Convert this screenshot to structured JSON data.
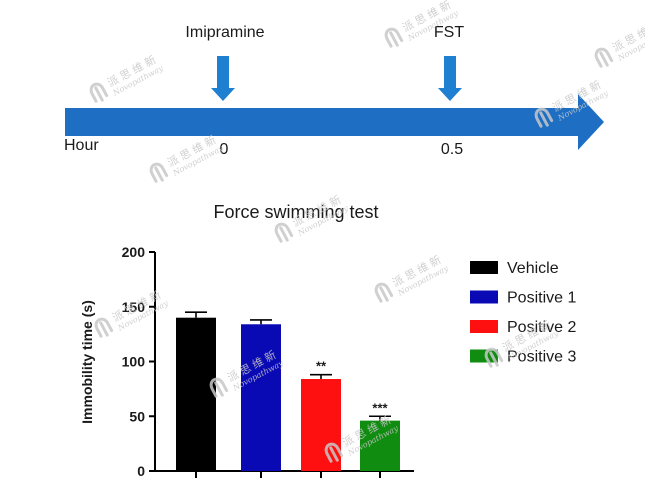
{
  "timeline": {
    "start_label": "Hour",
    "events": [
      {
        "name": "Imipramine",
        "time": "0"
      },
      {
        "name": "FST",
        "time": "0.5"
      }
    ],
    "colors": {
      "arrow": "#1e6fc4",
      "marker": "#1f7fd1"
    }
  },
  "chart_data": {
    "type": "bar",
    "title": "Force swimming test",
    "xlabel": "",
    "ylabel": "Immobility time (s)",
    "ylim": [
      0,
      200
    ],
    "yticks": [
      0,
      50,
      100,
      150,
      200
    ],
    "categories": [
      "Vehicle",
      "Positive 1",
      "Positive 2",
      "Positive 3"
    ],
    "values": [
      140,
      134,
      84,
      46
    ],
    "errors": [
      5,
      4,
      4,
      4
    ],
    "significance": [
      "",
      "",
      "**",
      "***"
    ],
    "colors": [
      "#000000",
      "#0a0ab4",
      "#ff1010",
      "#108c10"
    ],
    "legend": {
      "placement": "right",
      "entries": [
        "Vehicle",
        "Positive 1",
        "Positive 2",
        "Positive 3"
      ]
    },
    "grid": false
  },
  "watermark": {
    "brand_cn": "派思维新",
    "brand_en": "Novopathway",
    "color": "#c8c8c8"
  }
}
